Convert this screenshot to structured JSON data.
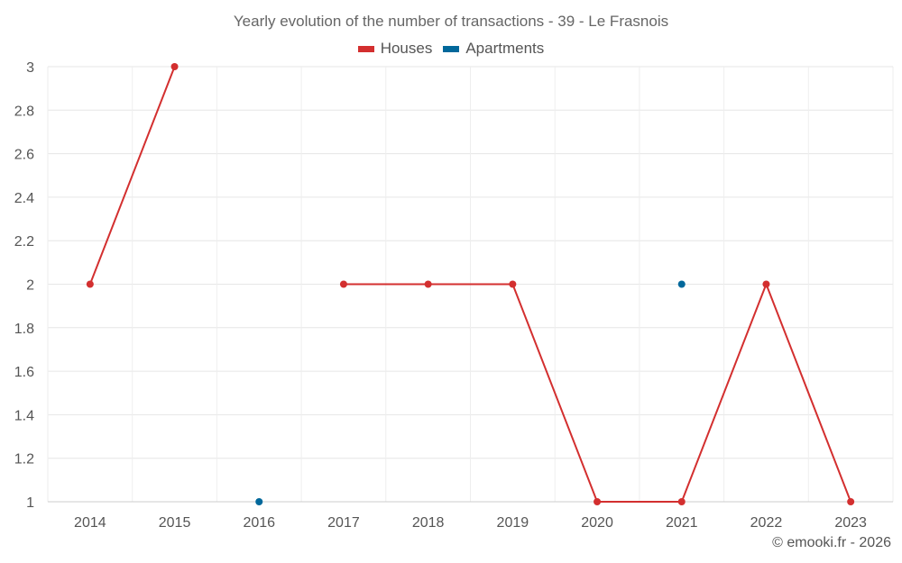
{
  "chart_data": {
    "type": "line",
    "title": "Yearly evolution of the number of transactions - 39 - Le Frasnois",
    "categories": [
      "2014",
      "2015",
      "2016",
      "2017",
      "2018",
      "2019",
      "2020",
      "2021",
      "2022",
      "2023"
    ],
    "ylim": [
      1,
      3
    ],
    "yticks": [
      "1",
      "1.2",
      "1.4",
      "1.6",
      "1.8",
      "2",
      "2.2",
      "2.4",
      "2.6",
      "2.8",
      "3"
    ],
    "grid": true,
    "legend_position": "top-center",
    "series": [
      {
        "name": "Houses",
        "color": "#d32f2f",
        "values": [
          2,
          3,
          null,
          2,
          2,
          2,
          1,
          1,
          2,
          1
        ]
      },
      {
        "name": "Apartments",
        "color": "#01689b",
        "values": [
          null,
          null,
          1,
          null,
          null,
          null,
          null,
          2,
          null,
          null
        ]
      }
    ]
  },
  "credit": "© emooki.fr - 2026"
}
